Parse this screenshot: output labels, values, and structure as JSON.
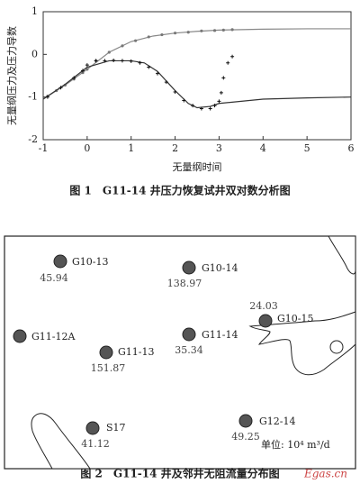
{
  "chart_data": {
    "type": "line",
    "x_label": "无量纲时间",
    "y_label": "无量纲压力及压力导数",
    "xlim": [
      -1,
      6
    ],
    "ylim": [
      -2,
      1
    ],
    "xticks": [
      -1,
      0,
      1,
      2,
      3,
      4,
      5,
      6
    ],
    "yticks": [
      -2,
      -1,
      0,
      1
    ],
    "series": [
      {
        "style": "line",
        "color": "#888888",
        "x": [
          -1,
          -0.5,
          0,
          0.5,
          1,
          1.5,
          2,
          2.5,
          3,
          3.5,
          4,
          5,
          6
        ],
        "values": [
          -1.05,
          -0.72,
          -0.35,
          0.05,
          0.3,
          0.43,
          0.5,
          0.54,
          0.57,
          0.58,
          0.59,
          0.6,
          0.6
        ]
      },
      {
        "style": "dots",
        "color": "#777777",
        "x": [
          -0.9,
          -0.7,
          -0.5,
          -0.3,
          -0.1,
          0,
          0.2,
          0.5,
          0.8,
          1.1,
          1.4,
          1.7,
          2,
          2.3,
          2.6,
          2.9,
          3.1,
          3.3
        ],
        "values": [
          -0.98,
          -0.85,
          -0.72,
          -0.58,
          -0.43,
          -0.35,
          -0.15,
          0.05,
          0.2,
          0.32,
          0.41,
          0.46,
          0.5,
          0.52,
          0.55,
          0.56,
          0.57,
          0.58
        ]
      },
      {
        "style": "line",
        "color": "#333333",
        "x": [
          -1,
          -0.5,
          0,
          0.5,
          1,
          1.3,
          1.6,
          2,
          2.3,
          2.5,
          2.8,
          3,
          4,
          5,
          6
        ],
        "values": [
          -1.05,
          -0.7,
          -0.3,
          -0.15,
          -0.15,
          -0.2,
          -0.4,
          -0.85,
          -1.15,
          -1.25,
          -1.22,
          -1.15,
          -1.05,
          -1.02,
          -1.0
        ]
      },
      {
        "style": "plus",
        "color": "#111111",
        "x": [
          -0.9,
          -0.6,
          -0.3,
          -0.1,
          0,
          0.2,
          0.4,
          0.6,
          0.8,
          1,
          1.2,
          1.4,
          1.6,
          1.8,
          2,
          2.2,
          2.4,
          2.6,
          2.8,
          2.9,
          3,
          3.05,
          3.1,
          3.2,
          3.3
        ],
        "values": [
          -1.0,
          -0.78,
          -0.55,
          -0.38,
          -0.25,
          -0.15,
          -0.15,
          -0.14,
          -0.15,
          -0.16,
          -0.2,
          -0.3,
          -0.45,
          -0.65,
          -0.88,
          -1.08,
          -1.2,
          -1.27,
          -1.27,
          -1.2,
          -1.1,
          -0.9,
          -0.55,
          -0.2,
          -0.05
        ]
      }
    ]
  },
  "figure1_caption": "图 1　G11-14 井压力恢复试井双对数分析图",
  "map": {
    "wells": [
      {
        "name": "G10-13",
        "value": "45.94"
      },
      {
        "name": "G10-14",
        "value": "138.97"
      },
      {
        "name": "G11-12A"
      },
      {
        "name": "G11-13",
        "value": "151.87"
      },
      {
        "name": "G11-14",
        "value": "35.34"
      },
      {
        "name": "G10-15",
        "value": "24.03"
      },
      {
        "name": "S17",
        "value": "41.12"
      },
      {
        "name": "G12-14",
        "value": "49.25"
      }
    ],
    "unit": "单位:  10⁴ m³/d",
    "watermark": "Egas.cn"
  },
  "figure2_caption": "图 2　G11-14 井及邻井无阻流量分布图"
}
